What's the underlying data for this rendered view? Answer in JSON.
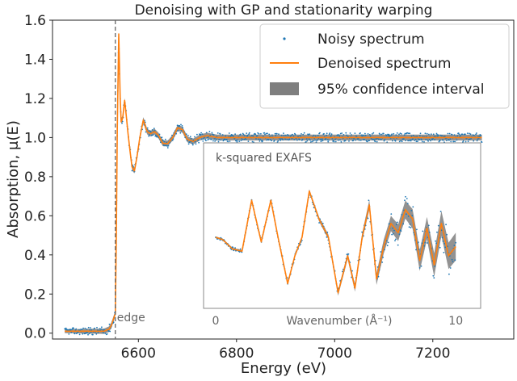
{
  "chart_data": [
    {
      "type": "line",
      "title": "Denoising with GP and stationarity warping",
      "xlabel": "Energy (eV)",
      "ylabel": "Absorption, μ(E)",
      "xlim": [
        6425,
        7365
      ],
      "ylim": [
        -0.03,
        1.6
      ],
      "xticks": [
        6600,
        6800,
        7000,
        7200
      ],
      "yticks": [
        0.0,
        0.2,
        0.4,
        0.6,
        0.8,
        1.0,
        1.2,
        1.4,
        1.6
      ],
      "grid": false,
      "legend_position": "top-right",
      "annotations": [
        {
          "text": "edge",
          "x": 6553
        }
      ],
      "edge_line_x": 6553,
      "series": [
        {
          "name": "Noisy spectrum",
          "style": "scatter",
          "color": "#1f77b4",
          "x": [
            6450,
            6480,
            6510,
            6530,
            6540,
            6545,
            6549,
            6553,
            6555,
            6557,
            6560,
            6563,
            6565,
            6568,
            6572,
            6575,
            6579,
            6583,
            6587,
            6592,
            6597,
            6603,
            6610,
            6618,
            6625,
            6633,
            6641,
            6650,
            6660,
            6670,
            6680,
            6690,
            6700,
            6712,
            6725,
            6740,
            6760,
            6800,
            6900,
            7000,
            7100,
            7200,
            7300
          ],
          "y": [
            0.01,
            0.01,
            0.01,
            0.01,
            0.02,
            0.04,
            0.07,
            0.1,
            0.5,
            1.05,
            1.53,
            1.2,
            1.08,
            1.1,
            1.19,
            1.12,
            1.02,
            0.93,
            0.85,
            0.83,
            0.9,
            1.0,
            1.09,
            1.03,
            1.02,
            1.03,
            1.01,
            0.97,
            0.97,
            1.0,
            1.05,
            1.04,
            0.99,
            0.98,
            1.0,
            1.01,
            1.0,
            1.0,
            1.0,
            1.0,
            1.0,
            1.0,
            1.0
          ]
        },
        {
          "name": "Denoised spectrum",
          "style": "line",
          "color": "#ff7f0e",
          "x": [
            6450,
            6480,
            6510,
            6530,
            6540,
            6545,
            6549,
            6553,
            6555,
            6557,
            6560,
            6563,
            6565,
            6568,
            6572,
            6575,
            6579,
            6583,
            6587,
            6592,
            6597,
            6603,
            6610,
            6618,
            6625,
            6633,
            6641,
            6650,
            6660,
            6670,
            6680,
            6690,
            6700,
            6712,
            6725,
            6740,
            6760,
            6800,
            6900,
            7000,
            7100,
            7200,
            7300
          ],
          "y": [
            0.01,
            0.01,
            0.01,
            0.01,
            0.02,
            0.04,
            0.07,
            0.1,
            0.5,
            1.05,
            1.53,
            1.2,
            1.08,
            1.1,
            1.19,
            1.12,
            1.02,
            0.93,
            0.85,
            0.83,
            0.9,
            1.0,
            1.09,
            1.03,
            1.02,
            1.03,
            1.01,
            0.97,
            0.97,
            1.0,
            1.05,
            1.04,
            0.99,
            0.98,
            1.0,
            1.01,
            1.0,
            1.0,
            1.0,
            1.0,
            1.0,
            1.0,
            1.0
          ]
        },
        {
          "name": "95% confidence interval",
          "style": "band",
          "color": "#7f7f7f",
          "x": [
            6450,
            6560,
            6600,
            6700,
            6800,
            7000,
            7300
          ],
          "halfwidth": [
            0.01,
            0.015,
            0.015,
            0.015,
            0.015,
            0.015,
            0.015
          ]
        }
      ]
    },
    {
      "type": "line",
      "title": "k-squared EXAFS",
      "xlabel": "Wavenumber (Å⁻¹)",
      "xlim": [
        -0.3,
        10.8
      ],
      "ylim": [
        -1.5,
        1.5
      ],
      "xticks": [
        0,
        10
      ],
      "yticks": [],
      "grid": false,
      "series": [
        {
          "name": "Noisy spectrum",
          "style": "scatter",
          "color": "#1f77b4",
          "x": [
            0.0,
            0.3,
            0.7,
            1.1,
            1.5,
            1.9,
            2.3,
            2.6,
            3.0,
            3.3,
            3.6,
            3.9,
            4.3,
            4.7,
            5.1,
            5.5,
            5.8,
            6.1,
            6.4,
            6.7,
            7.0,
            7.3,
            7.6,
            7.9,
            8.2,
            8.5,
            8.8,
            9.1,
            9.4,
            9.7,
            10.0
          ],
          "y": [
            0.0,
            -0.05,
            -0.25,
            -0.3,
            0.8,
            -0.1,
            0.8,
            0.0,
            -1.0,
            -0.4,
            0.0,
            1.0,
            0.4,
            0.0,
            -1.2,
            -0.4,
            -1.1,
            0.0,
            0.7,
            -0.9,
            -0.2,
            0.3,
            0.1,
            0.6,
            0.4,
            -0.5,
            0.2,
            -0.6,
            0.3,
            -0.4,
            -0.2
          ]
        },
        {
          "name": "Denoised spectrum",
          "style": "line",
          "color": "#ff7f0e",
          "x": [
            0.0,
            0.3,
            0.7,
            1.1,
            1.5,
            1.9,
            2.3,
            2.6,
            3.0,
            3.3,
            3.6,
            3.9,
            4.3,
            4.7,
            5.1,
            5.5,
            5.8,
            6.1,
            6.4,
            6.7,
            7.0,
            7.3,
            7.6,
            7.9,
            8.2,
            8.5,
            8.8,
            9.1,
            9.4,
            9.7,
            10.0
          ],
          "y": [
            0.0,
            -0.05,
            -0.25,
            -0.3,
            0.8,
            -0.1,
            0.8,
            0.0,
            -1.0,
            -0.4,
            0.0,
            1.0,
            0.4,
            0.0,
            -1.2,
            -0.4,
            -1.1,
            0.0,
            0.7,
            -0.9,
            -0.2,
            0.3,
            0.1,
            0.6,
            0.4,
            -0.5,
            0.2,
            -0.6,
            0.3,
            -0.4,
            -0.2
          ]
        },
        {
          "name": "95% confidence interval",
          "style": "band",
          "color": "#7f7f7f",
          "x": [
            0,
            4,
            6,
            7,
            8,
            9,
            10
          ],
          "halfwidth": [
            0.02,
            0.04,
            0.08,
            0.15,
            0.2,
            0.25,
            0.3
          ]
        }
      ]
    }
  ],
  "legend": {
    "items": [
      {
        "label": "Noisy spectrum",
        "marker": "dot",
        "color": "#1f77b4"
      },
      {
        "label": "Denoised spectrum",
        "marker": "line",
        "color": "#ff7f0e"
      },
      {
        "label": "95% confidence interval",
        "marker": "patch",
        "color": "#7f7f7f"
      }
    ]
  }
}
